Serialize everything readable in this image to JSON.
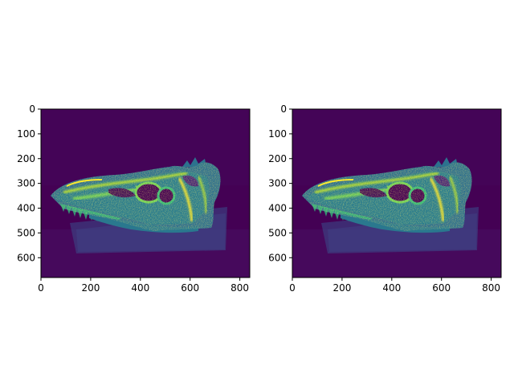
{
  "figure": {
    "background": "#ffffff"
  },
  "colors": {
    "colormap": "viridis",
    "background_value_color": "#440154",
    "mid_color": "#21918c",
    "high_color": "#fde725",
    "axes_color": "#000000"
  },
  "chart_data": [
    {
      "type": "heatmap",
      "subject": "dinosaur skull photograph rendered with viridis colormap",
      "image_width": 840,
      "image_height": 680,
      "xlim": [
        0,
        840
      ],
      "ylim": [
        680,
        0
      ],
      "xticks": [
        0,
        200,
        400,
        600,
        800
      ],
      "yticks": [
        0,
        100,
        200,
        300,
        400,
        500,
        600
      ],
      "xtick_labels": [
        "0",
        "200",
        "400",
        "600",
        "800"
      ],
      "ytick_labels": [
        "0",
        "100",
        "200",
        "300",
        "400",
        "500",
        "600"
      ],
      "grid": false
    },
    {
      "type": "heatmap",
      "subject": "dinosaur skull photograph rendered with viridis colormap",
      "image_width": 840,
      "image_height": 680,
      "xlim": [
        0,
        840
      ],
      "ylim": [
        680,
        0
      ],
      "xticks": [
        0,
        200,
        400,
        600,
        800
      ],
      "yticks": [
        0,
        100,
        200,
        300,
        400,
        500,
        600
      ],
      "xtick_labels": [
        "0",
        "200",
        "400",
        "600",
        "800"
      ],
      "ytick_labels": [
        "0",
        "100",
        "200",
        "300",
        "400",
        "500",
        "600"
      ],
      "grid": false
    }
  ]
}
